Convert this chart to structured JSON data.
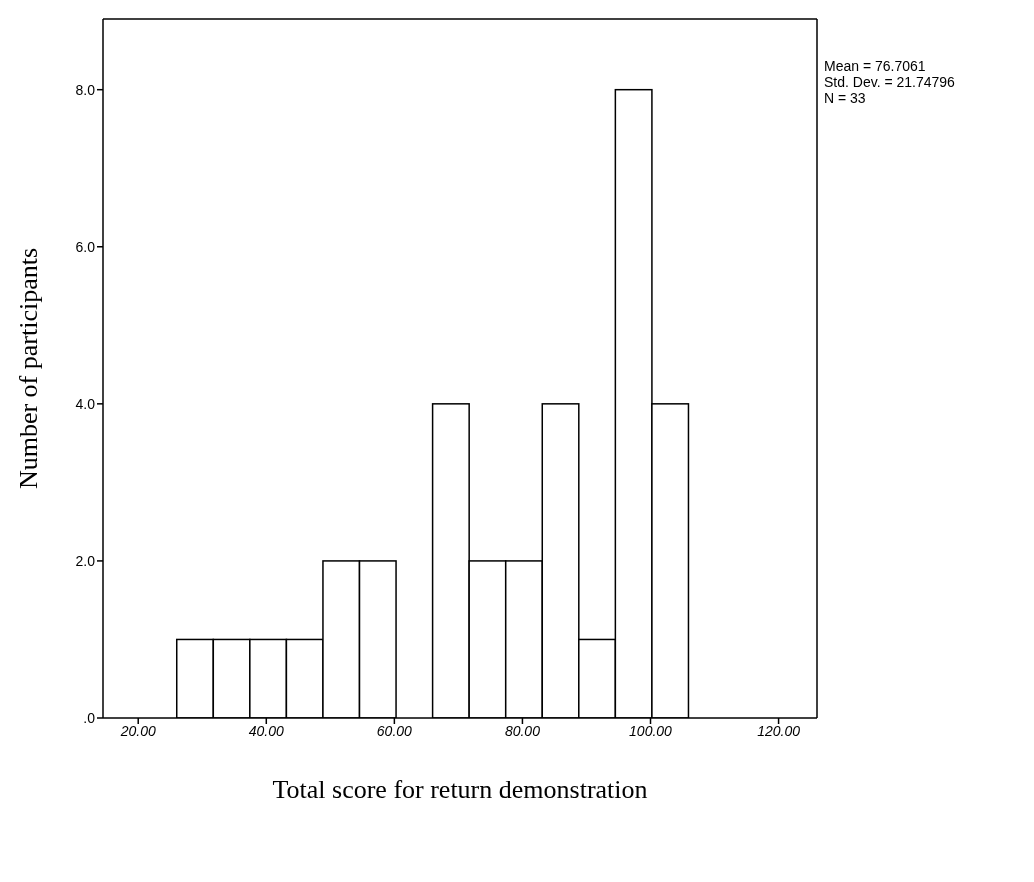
{
  "chart_data": {
    "type": "histogram",
    "xlabel": "Total score for return demonstration",
    "ylabel": "Number of participants",
    "bins": [
      26.0,
      31.7,
      37.4,
      43.1,
      48.8,
      54.5,
      60.2,
      65.9,
      71.6,
      77.3,
      83.0,
      88.7,
      94.4,
      100.1,
      105.8
    ],
    "values": [
      1,
      1,
      1,
      1,
      2,
      2,
      0,
      4,
      2,
      2,
      4,
      1,
      8,
      4
    ],
    "color": "#ffffff",
    "xlim": [
      14.5,
      126
    ],
    "xticks": [
      {
        "value": 20,
        "label": "20.00"
      },
      {
        "value": 40,
        "label": "40.00"
      },
      {
        "value": 60,
        "label": "60.00"
      },
      {
        "value": 80,
        "label": "80.00"
      },
      {
        "value": 100,
        "label": "100.00"
      },
      {
        "value": 120,
        "label": "120.00"
      }
    ],
    "ylim": [
      0,
      8.9
    ],
    "yticks": [
      {
        "value": 0,
        "label": ".0"
      },
      {
        "value": 2,
        "label": "2.0"
      },
      {
        "value": 4,
        "label": "4.0"
      },
      {
        "value": 6,
        "label": "6.0"
      },
      {
        "value": 8,
        "label": "8.0"
      }
    ],
    "grid": false,
    "legend": false,
    "annotations": [
      "Mean = 76.7061",
      "Std. Dev. = 21.74796",
      "N = 33"
    ]
  }
}
